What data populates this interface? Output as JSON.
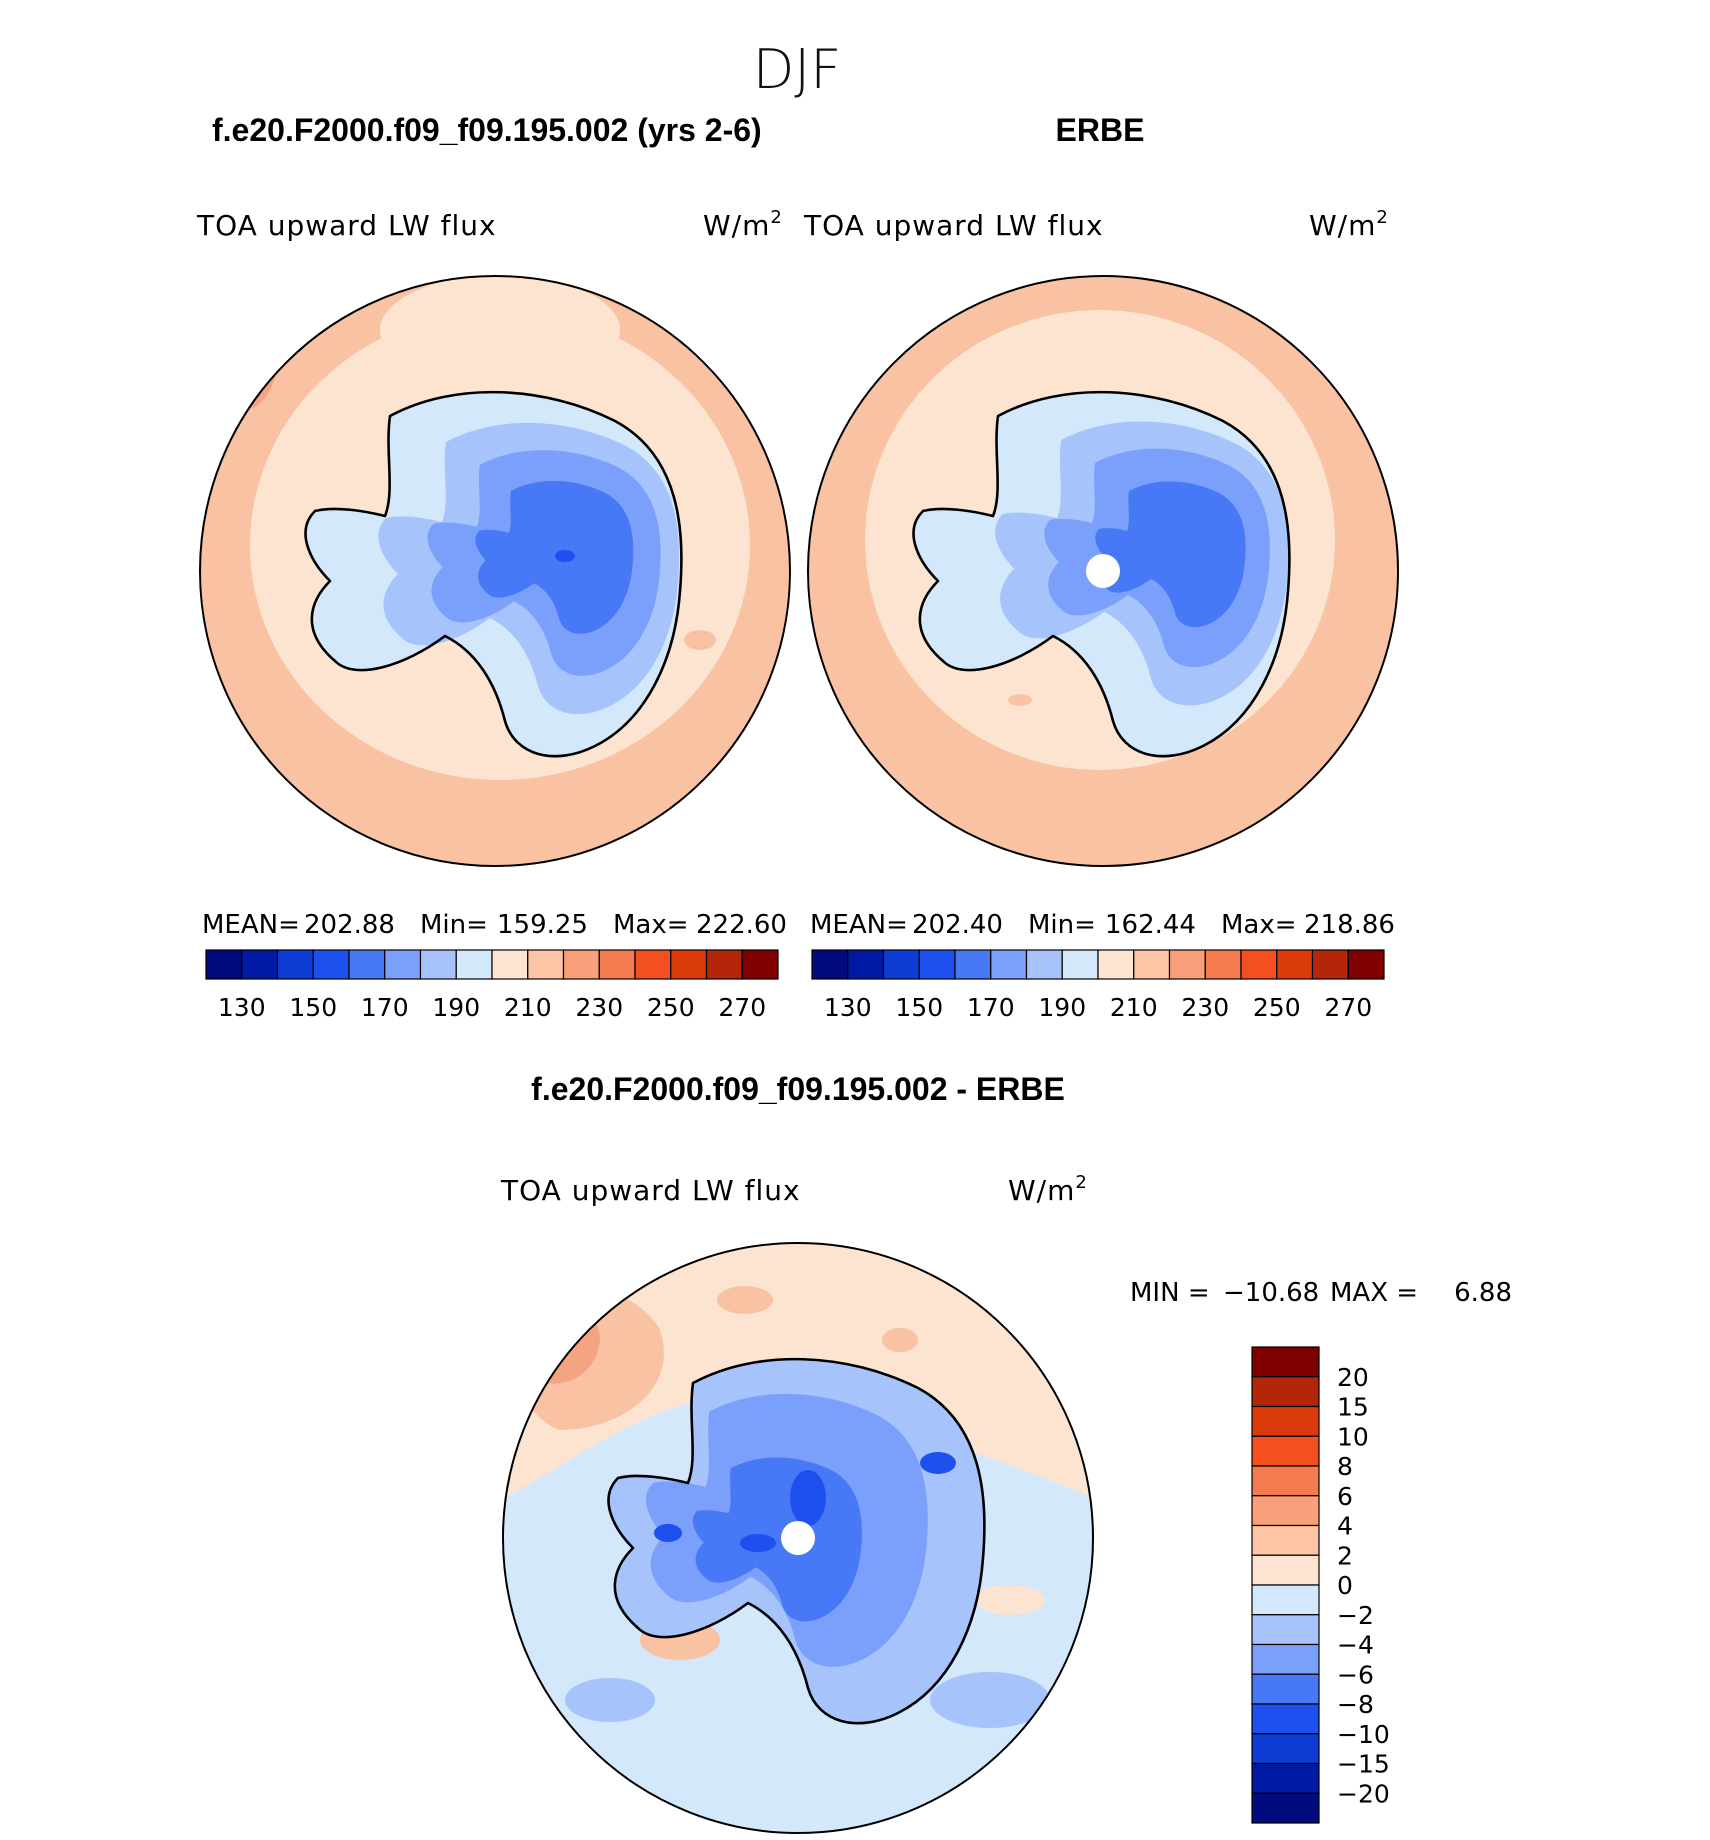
{
  "figure": {
    "season": "DJF",
    "unit_base": "W/m",
    "unit_exp": "2"
  },
  "panels": {
    "model": {
      "heading": "f.e20.F2000.f09_f09.195.002 (yrs 2-6)",
      "variable": "TOA upward LW flux",
      "mean_label": "MEAN=",
      "mean": "202.88",
      "min_label": "Min=",
      "min": "159.25",
      "max_label": "Max=",
      "max": "222.60"
    },
    "obs": {
      "heading": "ERBE",
      "variable": "TOA upward LW flux",
      "mean_label": "MEAN=",
      "mean": "202.40",
      "min_label": "Min=",
      "min": "162.44",
      "max_label": "Max=",
      "max": "218.86"
    },
    "diff": {
      "heading": "f.e20.F2000.f09_f09.195.002 - ERBE",
      "variable": "TOA upward LW flux",
      "min_label": "MIN =",
      "min": "−10.68",
      "max_label": "MAX =",
      "max": "6.88"
    }
  },
  "chart_data": [
    {
      "type": "heatmap",
      "projection": "south-polar-stereographic",
      "title": "f.e20.F2000.f09_f09.195.002 (yrs 2-6)",
      "variable": "TOA upward LW flux",
      "units": "W/m2",
      "mean": 202.88,
      "min": 159.25,
      "max": 222.6,
      "colorbar": {
        "orientation": "horizontal",
        "levels": [
          130,
          140,
          150,
          160,
          170,
          180,
          190,
          200,
          210,
          220,
          230,
          240,
          250,
          260,
          270
        ],
        "tick_labels": [
          "130",
          "150",
          "170",
          "190",
          "210",
          "230",
          "250",
          "270"
        ],
        "colors": [
          "#000c7d",
          "#001aa6",
          "#0e3dd6",
          "#1e50f0",
          "#4778f5",
          "#7aa0fb",
          "#a6c3fb",
          "#d3e8fb",
          "#fde4d0",
          "#fdc5a6",
          "#f9a07a",
          "#f47a4f",
          "#f4501f",
          "#db3b0a",
          "#b32607",
          "#800000"
        ]
      }
    },
    {
      "type": "heatmap",
      "projection": "south-polar-stereographic",
      "title": "ERBE",
      "variable": "TOA upward LW flux",
      "units": "W/m2",
      "mean": 202.4,
      "min": 162.44,
      "max": 218.86,
      "colorbar": {
        "orientation": "horizontal",
        "levels": [
          130,
          140,
          150,
          160,
          170,
          180,
          190,
          200,
          210,
          220,
          230,
          240,
          250,
          260,
          270
        ],
        "tick_labels": [
          "130",
          "150",
          "170",
          "190",
          "210",
          "230",
          "250",
          "270"
        ],
        "colors": [
          "#000c7d",
          "#001aa6",
          "#0e3dd6",
          "#1e50f0",
          "#4778f5",
          "#7aa0fb",
          "#a6c3fb",
          "#d3e8fb",
          "#fde4d0",
          "#fdc5a6",
          "#f9a07a",
          "#f47a4f",
          "#f4501f",
          "#db3b0a",
          "#b32607",
          "#800000"
        ]
      }
    },
    {
      "type": "heatmap",
      "projection": "south-polar-stereographic",
      "title": "f.e20.F2000.f09_f09.195.002 - ERBE",
      "variable": "TOA upward LW flux",
      "units": "W/m2",
      "min": -10.68,
      "max": 6.88,
      "colorbar": {
        "orientation": "vertical",
        "levels": [
          -20,
          -15,
          -10,
          -8,
          -6,
          -4,
          -2,
          0,
          2,
          4,
          6,
          8,
          10,
          15,
          20
        ],
        "tick_labels": [
          "20",
          "15",
          "10",
          "8",
          "6",
          "4",
          "2",
          "0",
          "−2",
          "−4",
          "−6",
          "−8",
          "−10",
          "−15",
          "−20"
        ],
        "colors": [
          "#000c7d",
          "#001aa6",
          "#0e3dd6",
          "#1e50f0",
          "#4778f5",
          "#7aa0fb",
          "#a6c3fb",
          "#d3e8fb",
          "#fde4d0",
          "#fdc5a6",
          "#f9a07a",
          "#f47a4f",
          "#f4501f",
          "#db3b0a",
          "#b32607",
          "#800000"
        ]
      }
    }
  ]
}
